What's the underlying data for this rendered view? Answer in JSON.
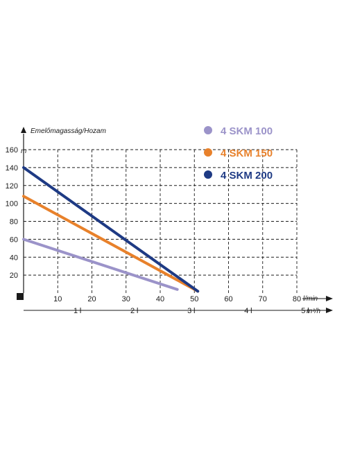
{
  "chart_data": {
    "type": "line",
    "title": "Emelőmagasság/Hozam",
    "ylabel": "m",
    "xlabel": "l/min",
    "x2label": "m³/h",
    "ylim": [
      0,
      160
    ],
    "xlim": [
      0,
      80
    ],
    "y_ticks": [
      "20",
      "40",
      "60",
      "80",
      "100",
      "120",
      "140",
      "160"
    ],
    "x_ticks": [
      "10",
      "20",
      "30",
      "40",
      "50",
      "60",
      "70",
      "80"
    ],
    "x2_ticks": [
      "1",
      "2",
      "3",
      "4",
      "5"
    ],
    "grid": true,
    "legend_position": "top-right",
    "series": [
      {
        "name": "4 SKM 100",
        "color": "#9b93c9",
        "x": [
          0,
          45
        ],
        "y": [
          60,
          4
        ]
      },
      {
        "name": "4 SKM 150",
        "color": "#e8812b",
        "x": [
          0,
          51
        ],
        "y": [
          108,
          2
        ]
      },
      {
        "name": "4 SKM 200",
        "color": "#1e3a84",
        "x": [
          0,
          51
        ],
        "y": [
          140,
          2
        ]
      }
    ]
  }
}
